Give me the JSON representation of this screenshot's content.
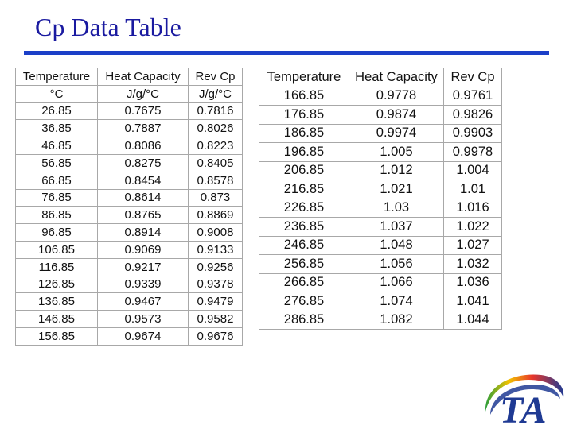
{
  "slide": {
    "title": "Cp Data Table"
  },
  "logo": {
    "text": "TA",
    "icon": "ta-instruments-logo-icon"
  },
  "colors": {
    "title": "#1a1aa0",
    "rule": "#1b3fc8",
    "logo": "#1f3a93"
  },
  "table_left": {
    "headers": [
      "Temperature",
      "Heat Capacity",
      "Rev Cp"
    ],
    "units": [
      "°C",
      "J/g/°C",
      "J/g/°C"
    ],
    "rows": [
      [
        "26.85",
        "0.7675",
        "0.7816"
      ],
      [
        "36.85",
        "0.7887",
        "0.8026"
      ],
      [
        "46.85",
        "0.8086",
        "0.8223"
      ],
      [
        "56.85",
        "0.8275",
        "0.8405"
      ],
      [
        "66.85",
        "0.8454",
        "0.8578"
      ],
      [
        "76.85",
        "0.8614",
        "0.873"
      ],
      [
        "86.85",
        "0.8765",
        "0.8869"
      ],
      [
        "96.85",
        "0.8914",
        "0.9008"
      ],
      [
        "106.85",
        "0.9069",
        "0.9133"
      ],
      [
        "116.85",
        "0.9217",
        "0.9256"
      ],
      [
        "126.85",
        "0.9339",
        "0.9378"
      ],
      [
        "136.85",
        "0.9467",
        "0.9479"
      ],
      [
        "146.85",
        "0.9573",
        "0.9582"
      ],
      [
        "156.85",
        "0.9674",
        "0.9676"
      ]
    ]
  },
  "table_right": {
    "headers": [
      "Temperature",
      "Heat Capacity",
      "Rev Cp"
    ],
    "rows": [
      [
        "166.85",
        "0.9778",
        "0.9761"
      ],
      [
        "176.85",
        "0.9874",
        "0.9826"
      ],
      [
        "186.85",
        "0.9974",
        "0.9903"
      ],
      [
        "196.85",
        "1.005",
        "0.9978"
      ],
      [
        "206.85",
        "1.012",
        "1.004"
      ],
      [
        "216.85",
        "1.021",
        "1.01"
      ],
      [
        "226.85",
        "1.03",
        "1.016"
      ],
      [
        "236.85",
        "1.037",
        "1.022"
      ],
      [
        "246.85",
        "1.048",
        "1.027"
      ],
      [
        "256.85",
        "1.056",
        "1.032"
      ],
      [
        "266.85",
        "1.066",
        "1.036"
      ],
      [
        "276.85",
        "1.074",
        "1.041"
      ],
      [
        "286.85",
        "1.082",
        "1.044"
      ]
    ]
  }
}
